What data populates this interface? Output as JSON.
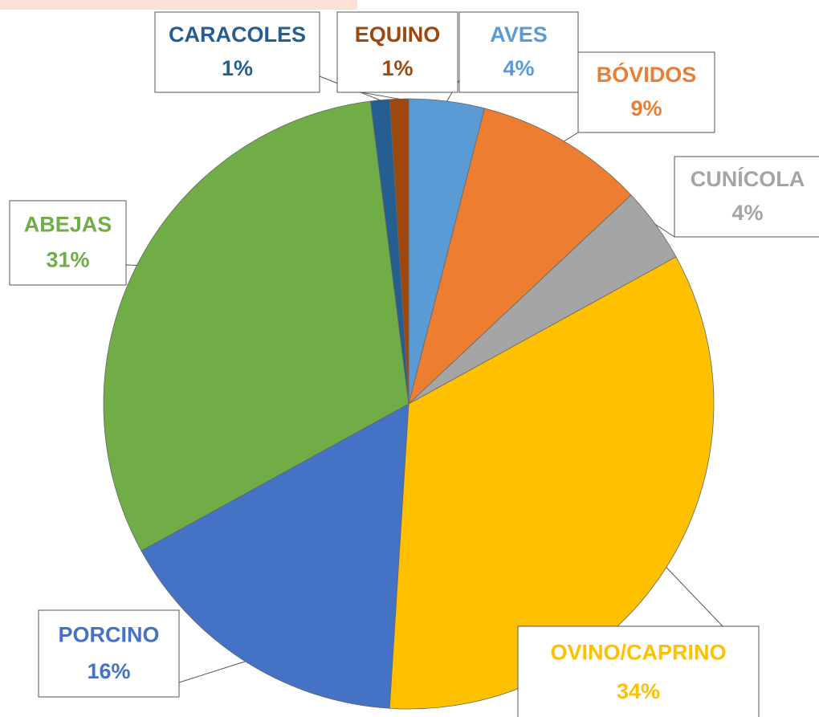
{
  "chart_data": {
    "type": "pie",
    "categories": [
      "AVES",
      "BÓVIDOS",
      "CUNÍCOLA",
      "OVINO/CAPRINO",
      "PORCINO",
      "ABEJAS",
      "CARACOLES",
      "EQUINO"
    ],
    "values": [
      4,
      9,
      4,
      34,
      16,
      31,
      1,
      1
    ],
    "value_labels": [
      "4%",
      "9%",
      "4%",
      "34%",
      "16%",
      "31%",
      "1%",
      "1%"
    ],
    "colors": [
      "#5b9bd5",
      "#ed7d31",
      "#a5a5a5",
      "#ffc000",
      "#4472c4",
      "#70ad47",
      "#255e91",
      "#9e480e"
    ]
  }
}
